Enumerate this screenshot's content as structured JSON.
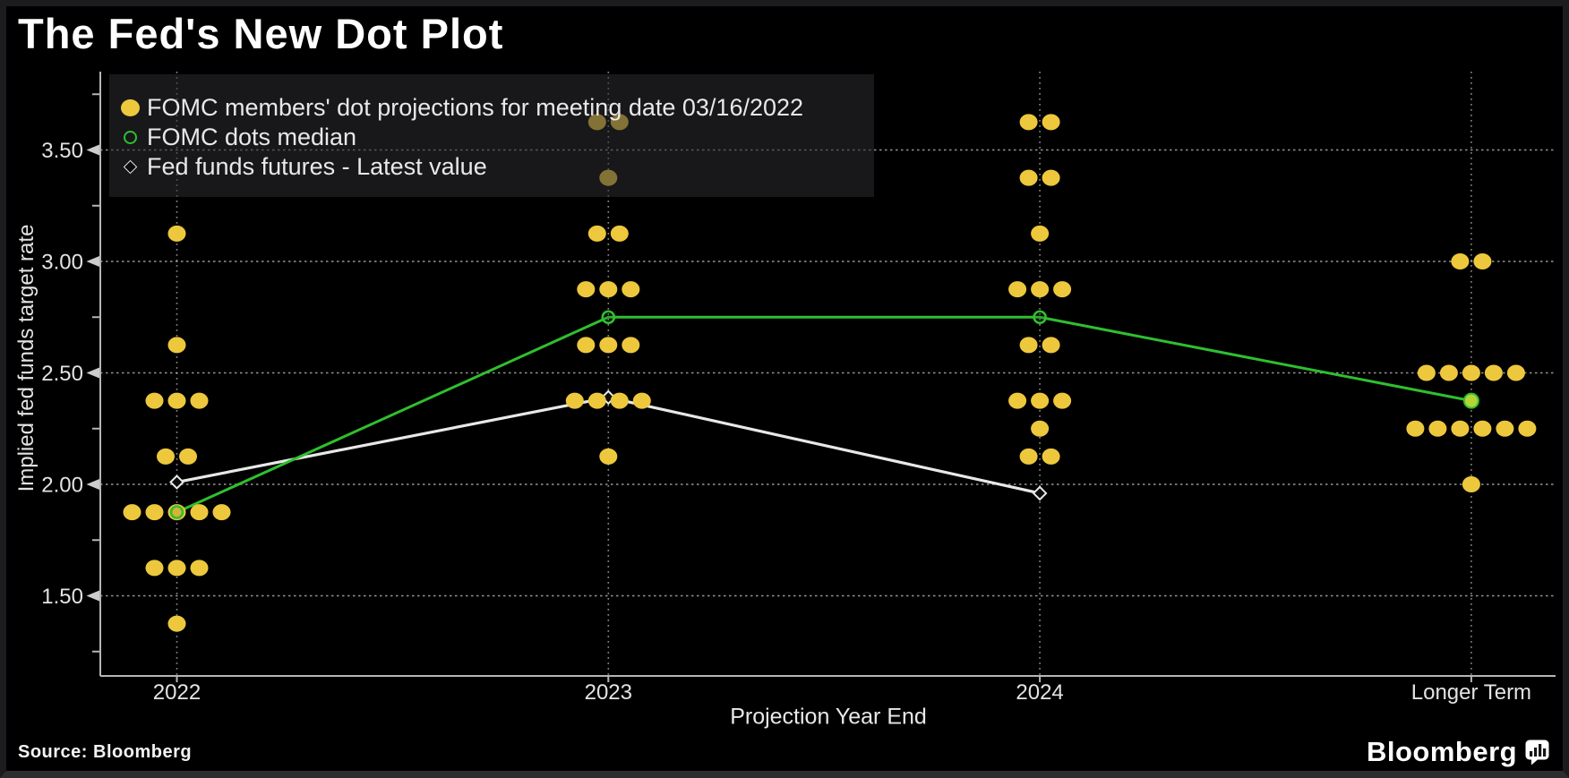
{
  "title": "The Fed's New Dot Plot",
  "source": "Source: Bloomberg",
  "branding": {
    "wordmark": "Bloomberg",
    "icon": "bar-chart-bubble-icon"
  },
  "legend": {
    "position": "top-left",
    "items": [
      {
        "marker": "filled-dot",
        "color": "#edc83d",
        "label": "FOMC members' dot projections for meeting date 03/16/2022"
      },
      {
        "marker": "open-circle",
        "color": "#2fbf2f",
        "label": "FOMC dots median"
      },
      {
        "marker": "open-diamond",
        "color": "#e8e8e8",
        "label": "Fed funds futures - Latest value"
      }
    ]
  },
  "chart_data": {
    "type": "scatter",
    "title": "The Fed's New Dot Plot",
    "xlabel": "Projection Year End",
    "ylabel": "Implied fed funds target rate",
    "categories": [
      "2022",
      "2023",
      "2024",
      "Longer Term"
    ],
    "ylim": [
      1.2,
      3.8
    ],
    "grid": "dotted horizontal and vertical gridlines",
    "background": "#000000",
    "y_ticks": [
      {
        "value": 3.5,
        "label": "3.50"
      },
      {
        "value": 3.0,
        "label": "3.00"
      },
      {
        "value": 2.5,
        "label": "2.50"
      },
      {
        "value": 2.0,
        "label": "2.00"
      },
      {
        "value": 1.5,
        "label": "1.50"
      }
    ],
    "y_minor_ticks": [
      3.75,
      3.25,
      2.75,
      2.25,
      1.75,
      1.25
    ],
    "dot_columns": [
      {
        "category": "2022",
        "dots": [
          {
            "rate": 3.125,
            "count": 1
          },
          {
            "rate": 2.625,
            "count": 1
          },
          {
            "rate": 2.375,
            "count": 3
          },
          {
            "rate": 2.125,
            "count": 2
          },
          {
            "rate": 1.875,
            "count": 5
          },
          {
            "rate": 1.625,
            "count": 3
          },
          {
            "rate": 1.375,
            "count": 1
          }
        ]
      },
      {
        "category": "2023",
        "dots": [
          {
            "rate": 3.625,
            "count": 2
          },
          {
            "rate": 3.375,
            "count": 1
          },
          {
            "rate": 3.125,
            "count": 2
          },
          {
            "rate": 2.875,
            "count": 3
          },
          {
            "rate": 2.625,
            "count": 3
          },
          {
            "rate": 2.375,
            "count": 4
          },
          {
            "rate": 2.125,
            "count": 1
          }
        ]
      },
      {
        "category": "2024",
        "dots": [
          {
            "rate": 3.625,
            "count": 2
          },
          {
            "rate": 3.375,
            "count": 2
          },
          {
            "rate": 3.125,
            "count": 1
          },
          {
            "rate": 2.875,
            "count": 3
          },
          {
            "rate": 2.625,
            "count": 2
          },
          {
            "rate": 2.375,
            "count": 3
          },
          {
            "rate": 2.25,
            "count": 1
          },
          {
            "rate": 2.125,
            "count": 2
          }
        ]
      },
      {
        "category": "Longer Term",
        "dots": [
          {
            "rate": 3.0,
            "count": 2
          },
          {
            "rate": 2.5,
            "count": 5
          },
          {
            "rate": 2.25,
            "count": 6
          },
          {
            "rate": 2.0,
            "count": 1
          }
        ]
      }
    ],
    "median_series": {
      "name": "FOMC dots median",
      "values": [
        {
          "category": "2022",
          "rate": 1.875
        },
        {
          "category": "2023",
          "rate": 2.75
        },
        {
          "category": "2024",
          "rate": 2.75
        },
        {
          "category": "Longer Term",
          "rate": 2.375,
          "filled": true
        }
      ]
    },
    "futures_series": {
      "name": "Fed funds futures - Latest value",
      "values": [
        {
          "category": "2022",
          "rate": 2.01
        },
        {
          "category": "2023",
          "rate": 2.39
        },
        {
          "category": "2024",
          "rate": 1.96
        }
      ]
    },
    "colors": {
      "dots": "#edc83d",
      "median_line": "#2fbf2f",
      "median_fill": "#b5d435",
      "futures_line": "#e8e8e8",
      "diamond_fill": "#0b0b0b",
      "grid": "#cfcfcf",
      "axis": "#b6b6b6",
      "tick_text": "#e3e3e3"
    }
  }
}
